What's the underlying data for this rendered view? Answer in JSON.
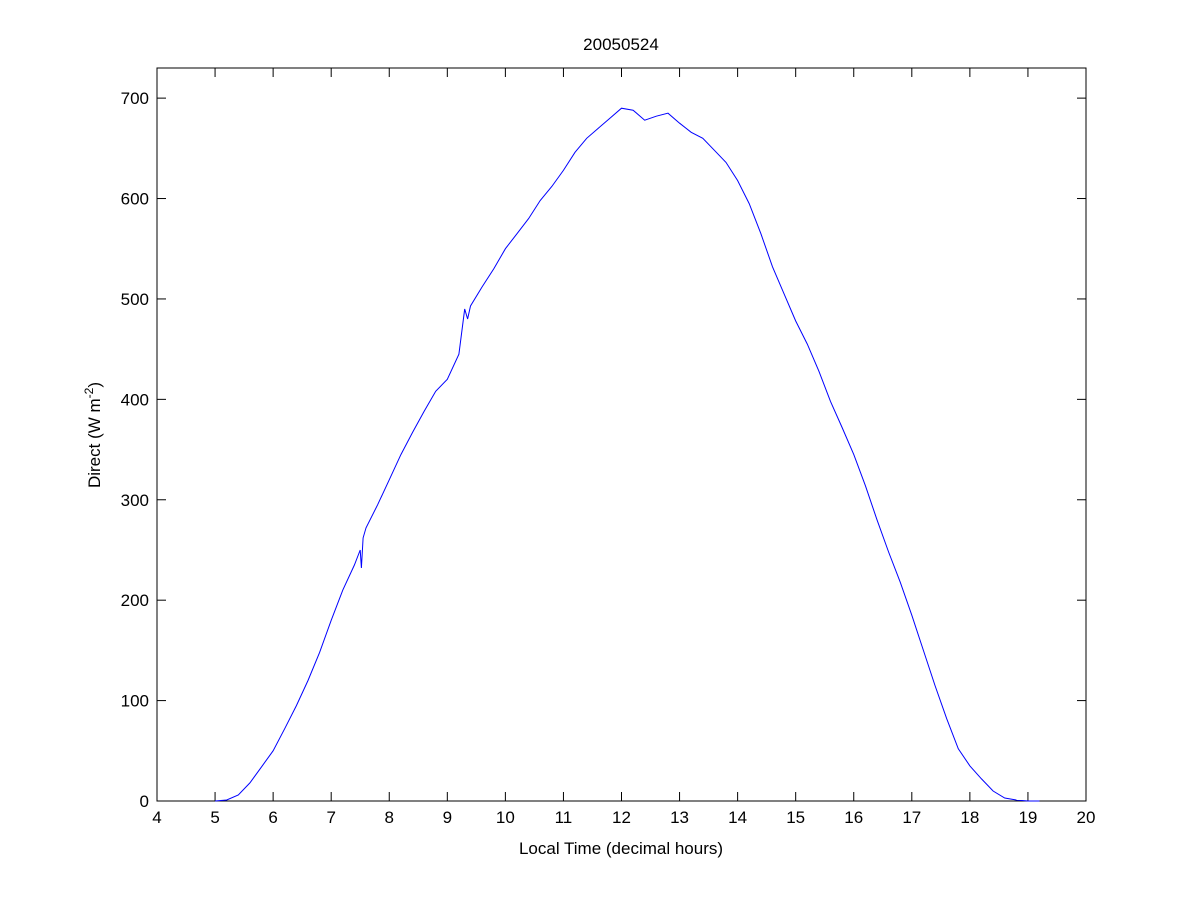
{
  "chart_data": {
    "type": "line",
    "title": "20050524",
    "xlabel": "Local Time (decimal hours)",
    "ylabel": {
      "prefix": "Direct (W m",
      "superscript": "-2",
      "suffix": ")"
    },
    "xlim": [
      4,
      20
    ],
    "ylim": [
      0,
      730
    ],
    "xticks": [
      4,
      5,
      6,
      7,
      8,
      9,
      10,
      11,
      12,
      13,
      14,
      15,
      16,
      17,
      18,
      19,
      20
    ],
    "yticks": [
      0,
      100,
      200,
      300,
      400,
      500,
      600,
      700
    ],
    "grid": false,
    "line_color": "#0000ff",
    "series": [
      {
        "x": [
          5.0,
          5.2,
          5.4,
          5.6,
          5.8,
          6.0,
          6.2,
          6.4,
          6.6,
          6.8,
          7.0,
          7.2,
          7.4,
          7.5,
          7.52,
          7.55,
          7.6,
          7.8,
          8.0,
          8.2,
          8.4,
          8.6,
          8.8,
          9.0,
          9.2,
          9.3,
          9.35,
          9.4,
          9.6,
          9.8,
          10.0,
          10.2,
          10.4,
          10.6,
          10.8,
          11.0,
          11.2,
          11.4,
          11.6,
          11.8,
          12.0,
          12.2,
          12.4,
          12.6,
          12.8,
          13.0,
          13.2,
          13.4,
          13.6,
          13.8,
          14.0,
          14.2,
          14.4,
          14.6,
          14.8,
          15.0,
          15.2,
          15.4,
          15.6,
          15.8,
          16.0,
          16.2,
          16.4,
          16.6,
          16.8,
          17.0,
          17.2,
          17.4,
          17.6,
          17.8,
          18.0,
          18.2,
          18.4,
          18.6,
          18.8,
          19.0,
          19.2
        ],
        "y": [
          0,
          1,
          6,
          18,
          34,
          50,
          72,
          95,
          120,
          148,
          180,
          210,
          235,
          250,
          232,
          262,
          272,
          295,
          320,
          345,
          367,
          388,
          408,
          420,
          445,
          490,
          480,
          493,
          512,
          530,
          550,
          565,
          580,
          598,
          612,
          628,
          646,
          660,
          670,
          680,
          690,
          688,
          678,
          682,
          685,
          675,
          666,
          660,
          648,
          636,
          618,
          595,
          565,
          532,
          505,
          478,
          455,
          428,
          398,
          372,
          345,
          314,
          280,
          248,
          218,
          185,
          150,
          115,
          82,
          52,
          35,
          22,
          10,
          3,
          1,
          0,
          0
        ]
      }
    ]
  }
}
